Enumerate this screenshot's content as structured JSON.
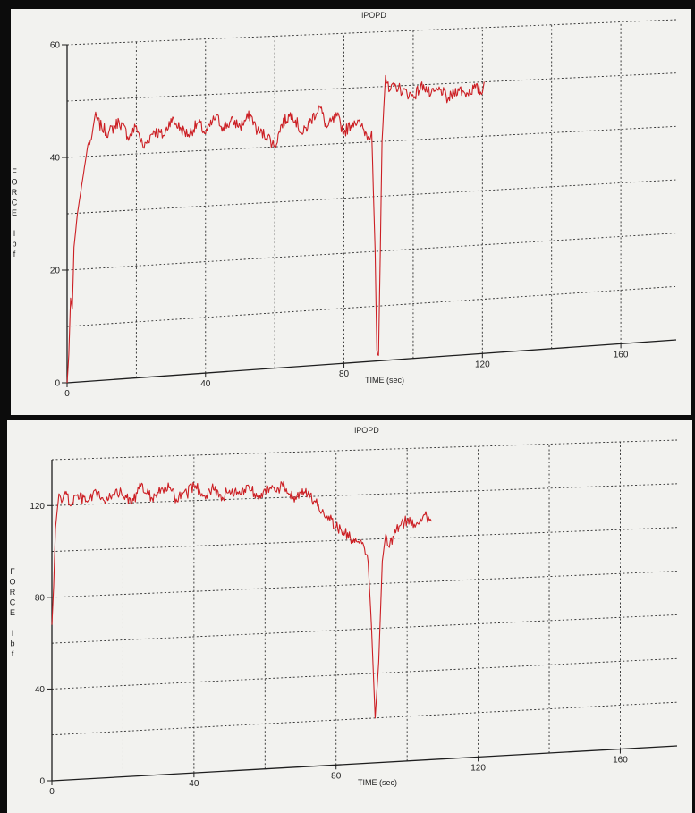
{
  "chart_data": [
    {
      "type": "line",
      "title": "iPOPD",
      "xlabel": "TIME (sec)",
      "ylabel": "FORCE lbf",
      "ylabel_chars": [
        "F",
        "O",
        "R",
        "C",
        "E",
        "",
        "l",
        "b",
        "f"
      ],
      "xlim": [
        0,
        176
      ],
      "ylim": [
        0,
        60
      ],
      "x_ticks": [
        0,
        40,
        80,
        120,
        160
      ],
      "y_ticks": [
        0,
        20,
        40,
        60
      ],
      "grid": true,
      "legend": "none",
      "colors": {
        "line": "#cc1f24",
        "background": "#f2f2ef",
        "grid": "#2e2e2e"
      },
      "series": [
        {
          "x": [
            0,
            0.5,
            1,
            1.5,
            2,
            3,
            4,
            5,
            6,
            7,
            8,
            10,
            12,
            15,
            18,
            20,
            22,
            25,
            28,
            30,
            33,
            35,
            38,
            40,
            43,
            45,
            48,
            50,
            53,
            55,
            58,
            60,
            62,
            65,
            68,
            70,
            73,
            75,
            78,
            80,
            83,
            85,
            87,
            88,
            89,
            89.5,
            90,
            90.5,
            91,
            92,
            93,
            95,
            97,
            100,
            103,
            105,
            108,
            110,
            113,
            115,
            118,
            120,
            120.5
          ],
          "y": [
            0,
            5,
            15,
            13,
            24,
            30,
            34,
            38,
            42,
            43,
            47,
            45,
            44,
            46,
            43,
            45,
            41,
            44,
            43,
            46,
            44,
            43,
            45,
            43,
            46,
            44,
            45,
            44,
            46,
            43,
            42,
            40,
            44,
            46,
            42,
            44,
            47,
            43,
            45,
            42,
            44,
            43,
            41,
            42,
            20,
            2,
            1,
            20,
            40,
            52,
            49,
            50,
            49,
            48,
            50,
            48,
            49,
            47,
            49,
            48,
            49,
            48,
            50
          ]
        }
      ]
    },
    {
      "type": "line",
      "title": "iPOPD",
      "xlabel": "TIME (sec)",
      "ylabel": "FORCE lbf",
      "ylabel_chars": [
        "F",
        "O",
        "R",
        "C",
        "E",
        "",
        "l",
        "b",
        "f"
      ],
      "xlim": [
        0,
        176
      ],
      "ylim": [
        0,
        140
      ],
      "x_ticks": [
        0,
        40,
        80,
        120,
        160
      ],
      "y_ticks": [
        0,
        40,
        80,
        120
      ],
      "grid": true,
      "legend": "none",
      "colors": {
        "line": "#cc1f24",
        "background": "#f2f2ef",
        "grid": "#2e2e2e"
      },
      "series": [
        {
          "x": [
            0,
            0.5,
            1,
            1.5,
            2,
            3,
            4,
            5,
            7,
            10,
            13,
            15,
            18,
            20,
            23,
            25,
            28,
            30,
            33,
            35,
            38,
            40,
            43,
            45,
            48,
            50,
            53,
            55,
            58,
            60,
            63,
            65,
            68,
            70,
            72,
            74,
            76,
            78,
            80,
            82,
            84,
            86,
            88,
            89,
            90,
            91,
            92,
            93,
            94,
            95,
            97,
            100,
            102,
            105,
            107
          ],
          "y": [
            68,
            85,
            110,
            118,
            125,
            122,
            126,
            120,
            124,
            121,
            125,
            120,
            126,
            123,
            121,
            127,
            122,
            124,
            126,
            121,
            123,
            127,
            122,
            125,
            121,
            124,
            122,
            126,
            121,
            124,
            123,
            125,
            120,
            122,
            121,
            118,
            113,
            111,
            106,
            104,
            101,
            99,
            96,
            90,
            60,
            20,
            45,
            90,
            102,
            96,
            104,
            108,
            106,
            110,
            107
          ]
        }
      ]
    }
  ]
}
